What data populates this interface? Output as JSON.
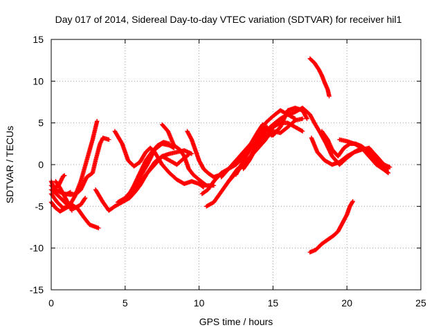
{
  "chart_data": {
    "type": "scatter",
    "title": "Day 017 of 2014, Sidereal Day-to-day VTEC variation (SDTVAR) for receiver hil1",
    "xlabel": "GPS time / hours",
    "ylabel": "SDTVAR / TECUs",
    "xlim": [
      0,
      25
    ],
    "ylim": [
      -15,
      15
    ],
    "xticks": [
      0,
      5,
      10,
      15,
      20,
      25
    ],
    "yticks": [
      -15,
      -10,
      -5,
      0,
      5,
      10,
      15
    ],
    "grid": true,
    "marker": "plus",
    "color": "#ff0000",
    "series": [
      {
        "name": "trace-1",
        "points": [
          [
            0.0,
            -3.5
          ],
          [
            0.4,
            -4.5
          ],
          [
            0.8,
            -5.2
          ],
          [
            1.2,
            -5.0
          ],
          [
            1.6,
            -3.8
          ],
          [
            2.0,
            -2.0
          ],
          [
            2.4,
            0.5
          ],
          [
            2.8,
            3.0
          ],
          [
            3.1,
            5.2
          ]
        ]
      },
      {
        "name": "trace-2",
        "points": [
          [
            0.0,
            -4.5
          ],
          [
            0.3,
            -5.2
          ],
          [
            0.6,
            -5.6
          ],
          [
            1.0,
            -5.2
          ],
          [
            1.4,
            -4.8
          ],
          [
            1.8,
            -5.3
          ],
          [
            2.2,
            -6.3
          ],
          [
            2.6,
            -7.2
          ],
          [
            3.2,
            -7.6
          ]
        ]
      },
      {
        "name": "trace-3",
        "points": [
          [
            0.0,
            -2.0
          ],
          [
            0.2,
            -2.8
          ],
          [
            0.5,
            -2.5
          ],
          [
            0.8,
            -1.4
          ],
          [
            0.9,
            -1.3
          ]
        ]
      },
      {
        "name": "trace-4",
        "points": [
          [
            0.0,
            -2.5
          ],
          [
            0.3,
            -3.0
          ],
          [
            0.6,
            -3.3
          ],
          [
            1.0,
            -3.6
          ],
          [
            1.3,
            -3.3
          ]
        ]
      },
      {
        "name": "trace-5",
        "points": [
          [
            0.0,
            -3.0
          ],
          [
            0.4,
            -3.6
          ],
          [
            0.8,
            -4.3
          ],
          [
            1.2,
            -5.0
          ],
          [
            1.6,
            -5.2
          ],
          [
            2.0,
            -4.8
          ],
          [
            2.3,
            -4.0
          ]
        ]
      },
      {
        "name": "trace-6",
        "points": [
          [
            0.3,
            -2.0
          ],
          [
            0.6,
            -2.8
          ],
          [
            0.9,
            -3.8
          ],
          [
            1.2,
            -4.8
          ],
          [
            1.4,
            -5.5
          ]
        ]
      },
      {
        "name": "trace-7",
        "points": [
          [
            0.9,
            -3.5
          ],
          [
            1.3,
            -3.6
          ],
          [
            1.7,
            -3.5
          ],
          [
            2.0,
            -3.0
          ],
          [
            2.4,
            -1.5
          ],
          [
            2.8,
            -1.0
          ],
          [
            3.0,
            0.5
          ],
          [
            3.3,
            2.5
          ],
          [
            3.5,
            3.2
          ],
          [
            3.9,
            3.0
          ]
        ]
      },
      {
        "name": "trace-8",
        "points": [
          [
            3.0,
            -3.0
          ],
          [
            3.5,
            -4.5
          ],
          [
            3.9,
            -5.5
          ],
          [
            4.3,
            -5.0
          ],
          [
            4.8,
            -4.5
          ],
          [
            5.3,
            -4.0
          ],
          [
            5.7,
            -3.2
          ],
          [
            6.0,
            -2.5
          ],
          [
            6.5,
            -1.0
          ],
          [
            7.0,
            0.0
          ],
          [
            7.5,
            1.0
          ],
          [
            8.0,
            1.3
          ],
          [
            8.5,
            1.5
          ],
          [
            9.0,
            1.7
          ],
          [
            9.5,
            1.3
          ]
        ]
      },
      {
        "name": "trace-9",
        "points": [
          [
            4.3,
            4.0
          ],
          [
            4.8,
            2.5
          ],
          [
            5.2,
            0.5
          ],
          [
            5.6,
            -0.2
          ],
          [
            6.0,
            0.3
          ],
          [
            6.4,
            1.5
          ],
          [
            6.7,
            2.0
          ],
          [
            7.0,
            1.5
          ],
          [
            7.5,
            0.0
          ],
          [
            8.0,
            -1.0
          ],
          [
            8.5,
            -1.8
          ],
          [
            9.0,
            -2.3
          ],
          [
            9.5,
            -2.0
          ],
          [
            10.0,
            -2.3
          ],
          [
            10.3,
            -2.7
          ]
        ]
      },
      {
        "name": "trace-10",
        "points": [
          [
            4.5,
            -4.5
          ],
          [
            5.0,
            -4.0
          ],
          [
            5.5,
            -3.0
          ],
          [
            6.0,
            -1.5
          ],
          [
            6.5,
            0.0
          ],
          [
            7.0,
            1.8
          ],
          [
            7.5,
            2.5
          ],
          [
            8.0,
            2.3
          ],
          [
            8.3,
            2.0
          ]
        ]
      },
      {
        "name": "trace-11",
        "points": [
          [
            5.0,
            -4.2
          ],
          [
            5.5,
            -3.3
          ],
          [
            6.0,
            -2.2
          ],
          [
            6.5,
            -1.0
          ],
          [
            7.0,
            0.3
          ],
          [
            7.5,
            1.0
          ],
          [
            8.0,
            0.5
          ],
          [
            8.5,
            0.0
          ],
          [
            9.0,
            0.8
          ],
          [
            9.3,
            1.2
          ]
        ]
      },
      {
        "name": "trace-12",
        "points": [
          [
            5.2,
            -3.8
          ],
          [
            5.6,
            -2.5
          ],
          [
            6.0,
            -1.0
          ],
          [
            6.4,
            0.5
          ],
          [
            6.8,
            1.5
          ],
          [
            7.2,
            2.3
          ],
          [
            7.6,
            2.7
          ],
          [
            8.0,
            2.5
          ]
        ]
      },
      {
        "name": "trace-13",
        "points": [
          [
            7.5,
            4.8
          ],
          [
            7.9,
            4.0
          ],
          [
            8.3,
            2.3
          ],
          [
            8.7,
            1.8
          ],
          [
            9.0,
            1.0
          ],
          [
            9.3,
            -0.5
          ],
          [
            9.6,
            -1.2
          ],
          [
            10.0,
            -1.8
          ],
          [
            10.5,
            -2.5
          ],
          [
            11.0,
            -2.5
          ]
        ]
      },
      {
        "name": "trace-14",
        "points": [
          [
            9.2,
            4.0
          ],
          [
            9.5,
            3.0
          ],
          [
            9.8,
            1.5
          ],
          [
            10.0,
            0.5
          ],
          [
            10.3,
            -0.5
          ],
          [
            10.6,
            -1.0
          ],
          [
            11.0,
            -1.5
          ],
          [
            11.3,
            -1.3
          ]
        ]
      },
      {
        "name": "trace-15",
        "points": [
          [
            10.2,
            -3.5
          ],
          [
            10.6,
            -3.0
          ],
          [
            11.0,
            -2.0
          ],
          [
            11.5,
            -1.0
          ],
          [
            12.0,
            -0.5
          ],
          [
            12.5,
            0.0
          ],
          [
            13.0,
            1.0
          ],
          [
            13.5,
            2.0
          ],
          [
            14.0,
            3.0
          ],
          [
            14.5,
            4.0
          ],
          [
            15.0,
            4.8
          ],
          [
            15.5,
            5.5
          ],
          [
            16.0,
            6.0
          ],
          [
            16.5,
            6.3
          ],
          [
            17.0,
            6.8
          ],
          [
            17.5,
            6.0
          ],
          [
            17.8,
            5.0
          ]
        ]
      },
      {
        "name": "trace-16",
        "points": [
          [
            10.5,
            -5.0
          ],
          [
            11.0,
            -4.5
          ],
          [
            11.4,
            -3.5
          ],
          [
            11.8,
            -2.5
          ],
          [
            12.2,
            -1.5
          ],
          [
            12.6,
            -0.5
          ],
          [
            13.0,
            0.0
          ],
          [
            13.5,
            1.0
          ],
          [
            14.0,
            2.0
          ],
          [
            14.5,
            3.0
          ],
          [
            15.0,
            4.5
          ],
          [
            15.5,
            5.0
          ],
          [
            16.0,
            5.0
          ],
          [
            16.5,
            4.5
          ],
          [
            17.0,
            4.0
          ]
        ]
      },
      {
        "name": "trace-17",
        "points": [
          [
            11.5,
            -1.5
          ],
          [
            12.0,
            -0.5
          ],
          [
            12.5,
            0.5
          ],
          [
            13.0,
            1.5
          ],
          [
            13.5,
            2.5
          ],
          [
            14.0,
            4.0
          ],
          [
            14.3,
            4.8
          ],
          [
            14.6,
            4.2
          ],
          [
            15.0,
            3.5
          ],
          [
            15.5,
            4.5
          ],
          [
            16.0,
            6.5
          ],
          [
            16.5,
            6.8
          ],
          [
            17.0,
            6.5
          ],
          [
            17.3,
            5.5
          ]
        ]
      },
      {
        "name": "trace-18",
        "points": [
          [
            12.0,
            -2.0
          ],
          [
            12.5,
            -1.0
          ],
          [
            13.0,
            0.0
          ],
          [
            13.5,
            1.0
          ],
          [
            14.0,
            2.5
          ],
          [
            14.5,
            3.5
          ],
          [
            15.0,
            4.0
          ],
          [
            15.5,
            3.8
          ],
          [
            16.0,
            4.5
          ],
          [
            16.5,
            5.3
          ],
          [
            17.0,
            5.5
          ]
        ]
      },
      {
        "name": "trace-19",
        "points": [
          [
            12.5,
            -1.2
          ],
          [
            13.0,
            0.5
          ],
          [
            13.5,
            2.0
          ],
          [
            14.0,
            3.5
          ],
          [
            14.5,
            5.0
          ],
          [
            15.0,
            5.8
          ],
          [
            15.5,
            6.5
          ],
          [
            16.0,
            6.0
          ],
          [
            16.5,
            5.5
          ]
        ]
      },
      {
        "name": "trace-20",
        "points": [
          [
            13.5,
            1.0
          ],
          [
            14.0,
            2.8
          ],
          [
            14.3,
            4.0
          ],
          [
            14.6,
            4.5
          ],
          [
            14.9,
            3.5
          ],
          [
            15.2,
            4.0
          ]
        ]
      },
      {
        "name": "trace-21",
        "points": [
          [
            13.0,
            -0.5
          ],
          [
            13.4,
            0.5
          ],
          [
            13.8,
            1.8
          ],
          [
            14.2,
            2.5
          ],
          [
            14.5,
            3.2
          ],
          [
            14.8,
            3.6
          ]
        ]
      },
      {
        "name": "trace-22",
        "points": [
          [
            17.5,
            12.7
          ],
          [
            17.8,
            12.2
          ],
          [
            18.1,
            11.4
          ],
          [
            18.3,
            10.7
          ],
          [
            18.5,
            9.8
          ],
          [
            18.7,
            9.0
          ],
          [
            18.8,
            8.2
          ]
        ]
      },
      {
        "name": "trace-23",
        "points": [
          [
            17.6,
            3.2
          ],
          [
            18.0,
            1.5
          ],
          [
            18.5,
            0.5
          ],
          [
            19.0,
            0.0
          ],
          [
            19.5,
            0.3
          ],
          [
            20.0,
            1.0
          ],
          [
            20.5,
            1.5
          ],
          [
            21.0,
            1.8
          ],
          [
            21.5,
            2.0
          ],
          [
            22.0,
            1.0
          ],
          [
            22.5,
            0.0
          ],
          [
            22.9,
            -0.3
          ]
        ]
      },
      {
        "name": "trace-24",
        "points": [
          [
            17.8,
            5.0
          ],
          [
            18.2,
            3.8
          ],
          [
            18.6,
            2.5
          ],
          [
            19.0,
            1.0
          ],
          [
            19.5,
            0.0
          ],
          [
            20.0,
            0.8
          ],
          [
            20.5,
            1.5
          ],
          [
            21.0,
            2.0
          ],
          [
            21.5,
            1.0
          ],
          [
            22.0,
            0.0
          ],
          [
            22.5,
            -0.6
          ],
          [
            22.8,
            -1.0
          ]
        ]
      },
      {
        "name": "trace-25",
        "points": [
          [
            18.3,
            4.0
          ],
          [
            18.7,
            3.0
          ],
          [
            19.0,
            1.8
          ],
          [
            19.4,
            1.0
          ],
          [
            19.8,
            2.0
          ],
          [
            20.2,
            2.5
          ],
          [
            20.6,
            2.5
          ],
          [
            21.0,
            2.2
          ],
          [
            21.5,
            1.5
          ],
          [
            22.0,
            0.5
          ],
          [
            22.4,
            0.0
          ],
          [
            22.7,
            -0.5
          ]
        ]
      },
      {
        "name": "trace-26",
        "points": [
          [
            19.5,
            3.0
          ],
          [
            20.0,
            2.8
          ],
          [
            20.5,
            2.5
          ],
          [
            21.0,
            2.0
          ],
          [
            21.5,
            1.5
          ],
          [
            22.0,
            1.0
          ],
          [
            22.5,
            0.0
          ],
          [
            22.8,
            -0.5
          ]
        ]
      },
      {
        "name": "trace-27",
        "points": [
          [
            17.5,
            -10.5
          ],
          [
            17.9,
            -10.2
          ],
          [
            18.3,
            -9.5
          ],
          [
            18.7,
            -9.0
          ],
          [
            19.1,
            -8.5
          ],
          [
            19.4,
            -8.0
          ],
          [
            19.7,
            -7.0
          ],
          [
            20.0,
            -6.0
          ],
          [
            20.2,
            -5.0
          ],
          [
            20.4,
            -4.4
          ]
        ]
      }
    ]
  }
}
